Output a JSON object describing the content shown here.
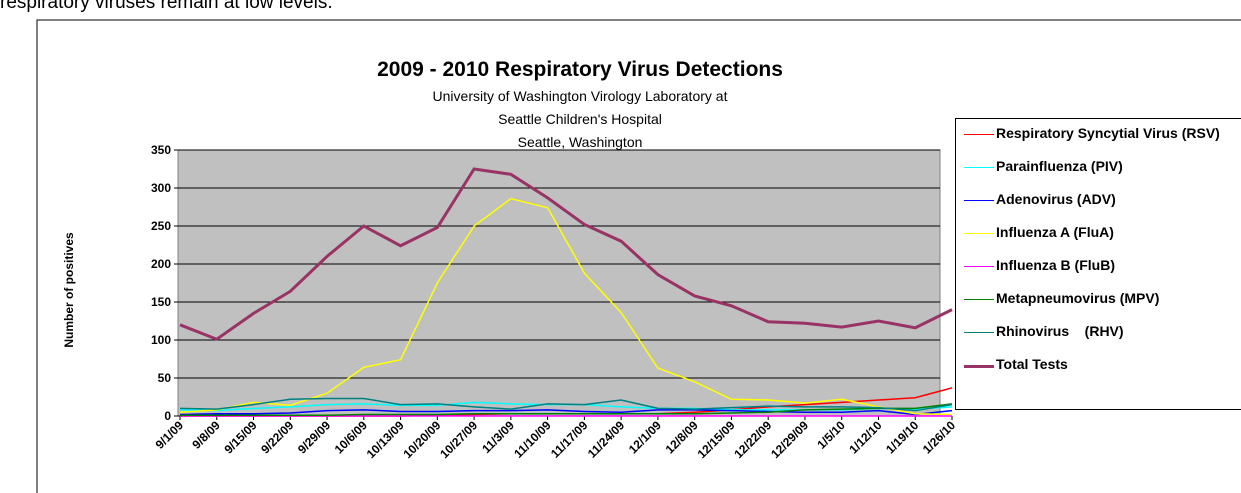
{
  "page_text": "respiratory viruses remain at low levels.",
  "chart_data": {
    "type": "line",
    "title": "2009 - 2010 Respiratory Virus Detections",
    "subtitle": [
      "University of Washington Virology Laboratory at",
      "Seattle Children's Hospital",
      "Seattle, Washington"
    ],
    "y_label": "Number of positives",
    "categories": [
      "9/1/09",
      "9/8/09",
      "9/15/09",
      "9/22/09",
      "9/29/09",
      "10/6/09",
      "10/13/09",
      "10/20/09",
      "10/27/09",
      "11/3/09",
      "11/10/09",
      "11/17/09",
      "11/24/09",
      "12/1/09",
      "12/8/09",
      "12/15/09",
      "12/22/09",
      "12/29/09",
      "1/5/10",
      "1/12/10",
      "1/19/10",
      "1/26/10"
    ],
    "ylim": [
      0,
      350
    ],
    "yticks": [
      0,
      50,
      100,
      150,
      200,
      250,
      300,
      350
    ],
    "grid": true,
    "legend": "right",
    "series": [
      {
        "name": "Respiratory Syncytial Virus (RSV)",
        "color": "#ff0000",
        "values": [
          0,
          0,
          0,
          0,
          0,
          0,
          0,
          1,
          2,
          3,
          3,
          3,
          3,
          3,
          5,
          8,
          12,
          15,
          18,
          21,
          24,
          37
        ]
      },
      {
        "name": "Parainfluenza (PIV)",
        "color": "#00ffff",
        "values": [
          8,
          7,
          10,
          12,
          15,
          16,
          14,
          14,
          18,
          16,
          15,
          15,
          12,
          10,
          10,
          8,
          8,
          8,
          8,
          10,
          9,
          12
        ]
      },
      {
        "name": "Adenovirus (ADV)",
        "color": "#0000ff",
        "values": [
          2,
          3,
          3,
          4,
          7,
          8,
          6,
          6,
          7,
          7,
          8,
          6,
          5,
          8,
          8,
          7,
          6,
          5,
          5,
          7,
          2,
          7
        ]
      },
      {
        "name": "Influenza A (FluA)",
        "color": "#ffff00",
        "values": [
          5,
          8,
          18,
          14,
          30,
          64,
          74,
          175,
          250,
          286,
          274,
          188,
          136,
          63,
          45,
          22,
          21,
          17,
          22,
          12,
          3,
          2
        ]
      },
      {
        "name": "Influenza B (FluB)",
        "color": "#ff00ff",
        "values": [
          0,
          0,
          0,
          0,
          0,
          0,
          0,
          0,
          0,
          0,
          0,
          0,
          0,
          0,
          0,
          0,
          0,
          0,
          0,
          0,
          0,
          0
        ]
      },
      {
        "name": "Metapneumovirus (MPV)",
        "color": "#008000",
        "values": [
          1,
          1,
          1,
          1,
          1,
          2,
          2,
          2,
          3,
          3,
          3,
          3,
          3,
          3,
          3,
          4,
          5,
          8,
          9,
          10,
          10,
          16
        ]
      },
      {
        "name": "Rhinovirus    (RHV)",
        "color": "#008080",
        "values": [
          10,
          9,
          15,
          22,
          23,
          23,
          15,
          16,
          12,
          9,
          16,
          15,
          21,
          10,
          9,
          11,
          13,
          12,
          12,
          11,
          7,
          15
        ]
      },
      {
        "name": "Total Tests",
        "color": "#993366",
        "width": 3,
        "values": [
          120,
          101,
          135,
          164,
          210,
          250,
          224,
          248,
          325,
          318,
          287,
          252,
          230,
          186,
          158,
          145,
          124,
          122,
          117,
          125,
          116,
          140
        ]
      }
    ]
  }
}
